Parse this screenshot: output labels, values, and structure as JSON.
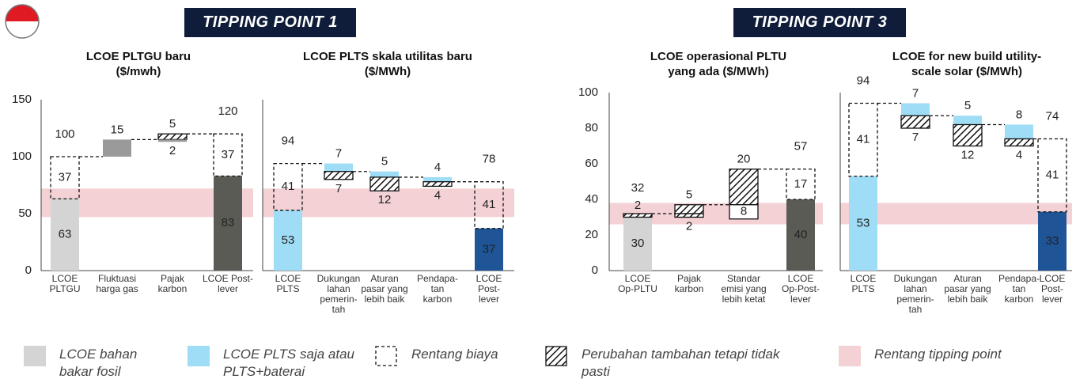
{
  "headers": [
    "TIPPING POINT 1",
    "TIPPING POINT 3"
  ],
  "legend": [
    {
      "label": "LCOE bahan\nbakar fosil",
      "kind": "fill",
      "color": "#d4d4d4"
    },
    {
      "label": "LCOE PLTS saja atau\nPLTS+baterai",
      "kind": "fill",
      "color": "#9fdcf5"
    },
    {
      "label": "Rentang biaya",
      "kind": "range"
    },
    {
      "label": "Perubahan tambahan tetapi tidak\npasti",
      "kind": "hatch"
    },
    {
      "label": "Rentang tipping point",
      "kind": "fill",
      "color": "#f3d1d4"
    }
  ],
  "chart_data": [
    {
      "type": "waterfall",
      "title": "LCOE PLTGU baru\n($/mwh)",
      "direction": "up",
      "ylim": [
        0,
        150
      ],
      "yticks": [
        0,
        50,
        100,
        150
      ],
      "band": [
        47,
        72
      ],
      "band_color": "#f3d1d4",
      "categories": [
        "LCOE\nPLTGU",
        "Fluktuasi\nharga gas",
        "Pajak\nkarbon",
        "LCOE Post-\nlever"
      ],
      "steps": [
        {
          "value": 100,
          "parts": [
            {
              "value": 63,
              "kind": "fill",
              "color": "#d4d4d4"
            },
            {
              "value": 37,
              "kind": "range"
            }
          ]
        },
        {
          "value": 15,
          "kind": "fill",
          "color": "#9a9a9a"
        },
        {
          "value": 5,
          "kind": "hatch",
          "extra": {
            "value": 2,
            "kind": "fill",
            "color": "#9a9a9a"
          }
        },
        {
          "value": 120,
          "parts": [
            {
              "value": 83,
              "kind": "fill",
              "color": "#5b5b55"
            },
            {
              "value": 37,
              "kind": "range"
            }
          ]
        }
      ]
    },
    {
      "type": "waterfall",
      "title": "LCOE PLTS skala utilitas baru\n($/MWh)",
      "direction": "down",
      "ylim": [
        0,
        150
      ],
      "band": [
        47,
        72
      ],
      "band_color": "#f3d1d4",
      "categories": [
        "LCOE\nPLTS",
        "Dukungan\nlahan\npemerin-\ntah",
        "Aturan\npasar yang\nlebih baik",
        "Pendapa-\ntan\nkarbon",
        "LCOE\nPost-\nlever"
      ],
      "steps": [
        {
          "value": 94,
          "parts": [
            {
              "value": 53,
              "kind": "fill",
              "color": "#9fdcf5"
            },
            {
              "value": 41,
              "kind": "range"
            }
          ]
        },
        {
          "value": 7,
          "kind": "fill",
          "color": "#9fdcf5",
          "extra": {
            "value": 7,
            "kind": "hatch"
          }
        },
        {
          "value": 5,
          "kind": "fill",
          "color": "#9fdcf5",
          "extra": {
            "value": 12,
            "kind": "hatch"
          }
        },
        {
          "value": 4,
          "kind": "fill",
          "color": "#9fdcf5",
          "extra": {
            "value": 4,
            "kind": "hatch"
          }
        },
        {
          "value": 78,
          "parts": [
            {
              "value": 37,
              "kind": "fill",
              "color": "#1f5496"
            },
            {
              "value": 41,
              "kind": "range"
            }
          ]
        }
      ]
    },
    {
      "type": "waterfall",
      "title": "LCOE operasional PLTU\nyang ada ($/MWh)",
      "direction": "up",
      "ylim": [
        0,
        100
      ],
      "yticks": [
        0,
        20,
        40,
        60,
        80,
        100
      ],
      "band": [
        26,
        38
      ],
      "band_color": "#f3d1d4",
      "categories": [
        "LCOE\nOp-PLTU",
        "Pajak\nkarbon",
        "Standar\nemisi yang\nlebih ketat",
        "LCOE\nOp-Post-\nlever"
      ],
      "steps": [
        {
          "value": 32,
          "parts": [
            {
              "value": 30,
              "kind": "fill",
              "color": "#d4d4d4"
            },
            {
              "value": 2,
              "kind": "hatch"
            }
          ]
        },
        {
          "value": 5,
          "kind": "hatch",
          "extra": {
            "value": 2,
            "kind": "hatch"
          }
        },
        {
          "value": 20,
          "kind": "hatch",
          "extra": {
            "value": 8,
            "kind": "box"
          }
        },
        {
          "value": 57,
          "parts": [
            {
              "value": 40,
              "kind": "fill",
              "color": "#5b5b55"
            },
            {
              "value": 17,
              "kind": "range"
            }
          ]
        }
      ]
    },
    {
      "type": "waterfall",
      "title": "LCOE for new build utility-\nscale solar ($/MWh)",
      "direction": "down",
      "ylim": [
        0,
        100
      ],
      "band": [
        26,
        38
      ],
      "band_color": "#f3d1d4",
      "categories": [
        "LCOE\nPLTS",
        "Dukungan\nlahan\npemerin-\ntah",
        "Aturan\npasar yang\nlebih baik",
        "Pendapa-\ntan\nkarbon",
        "LCOE\nPost-\nlever"
      ],
      "steps": [
        {
          "value": 94,
          "parts": [
            {
              "value": 53,
              "kind": "fill",
              "color": "#9fdcf5"
            },
            {
              "value": 41,
              "kind": "range"
            }
          ]
        },
        {
          "value": 7,
          "kind": "fill",
          "color": "#9fdcf5",
          "extra": {
            "value": 7,
            "kind": "hatch"
          }
        },
        {
          "value": 5,
          "kind": "fill",
          "color": "#9fdcf5",
          "extra": {
            "value": 12,
            "kind": "hatch"
          }
        },
        {
          "value": 8,
          "kind": "fill",
          "color": "#9fdcf5",
          "extra": {
            "value": 4,
            "kind": "hatch"
          }
        },
        {
          "value": 74,
          "parts": [
            {
              "value": 33,
              "kind": "fill",
              "color": "#1f5496"
            },
            {
              "value": 41,
              "kind": "range"
            }
          ]
        }
      ]
    }
  ]
}
